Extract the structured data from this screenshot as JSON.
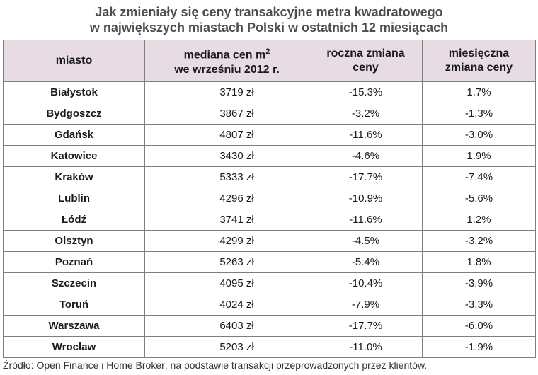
{
  "title_line1": "Jak zmieniały się ceny transakcyjne metra kwadratowego",
  "title_line2": "w największych miastach Polski w ostatnich 12 miesiącach",
  "headers": {
    "city": "miasto",
    "median_line1": "mediana cen m",
    "median_sup": "2",
    "median_line2": "we wrześniu 2012 r.",
    "yearly_line1": "roczna zmiana",
    "yearly_line2": "ceny",
    "monthly_line1": "miesięczna",
    "monthly_line2": "zmiana ceny"
  },
  "source": "Źródło: Open Finance i Home Broker; na podstawie transakcji przeprowadzonych przez klientów.",
  "chart_data": {
    "type": "table",
    "title": "Jak zmieniały się ceny transakcyjne metra kwadratowego w największych miastach Polski w ostatnich 12 miesiącach",
    "columns": [
      "miasto",
      "mediana cen m2 we wrześniu 2012 r.",
      "roczna zmiana ceny",
      "miesięczna zmiana ceny"
    ],
    "rows": [
      {
        "city": "Białystok",
        "median": "3719 zł",
        "yearly": "-15.3%",
        "monthly": "1.7%"
      },
      {
        "city": "Bydgoszcz",
        "median": "3867 zł",
        "yearly": "-3.2%",
        "monthly": "-1.3%"
      },
      {
        "city": "Gdańsk",
        "median": "4807 zł",
        "yearly": "-11.6%",
        "monthly": "-3.0%"
      },
      {
        "city": "Katowice",
        "median": "3430 zł",
        "yearly": "-4.6%",
        "monthly": "1.9%"
      },
      {
        "city": "Kraków",
        "median": "5333 zł",
        "yearly": "-17.7%",
        "monthly": "-7.4%"
      },
      {
        "city": "Lublin",
        "median": "4296 zł",
        "yearly": "-10.9%",
        "monthly": "-5.6%"
      },
      {
        "city": "Łódź",
        "median": "3741 zł",
        "yearly": "-11.6%",
        "monthly": "1.2%"
      },
      {
        "city": "Olsztyn",
        "median": "4299 zł",
        "yearly": "-4.5%",
        "monthly": "-3.2%"
      },
      {
        "city": "Poznań",
        "median": "5263 zł",
        "yearly": "-5.4%",
        "monthly": "1.8%"
      },
      {
        "city": "Szczecin",
        "median": "4095 zł",
        "yearly": "-10.4%",
        "monthly": "-3.9%"
      },
      {
        "city": "Toruń",
        "median": "4024 zł",
        "yearly": "-7.9%",
        "monthly": "-3.3%"
      },
      {
        "city": "Warszawa",
        "median": "6403 zł",
        "yearly": "-17.7%",
        "monthly": "-6.0%"
      },
      {
        "city": "Wrocław",
        "median": "5203 zł",
        "yearly": "-11.0%",
        "monthly": "-1.9%"
      }
    ]
  }
}
